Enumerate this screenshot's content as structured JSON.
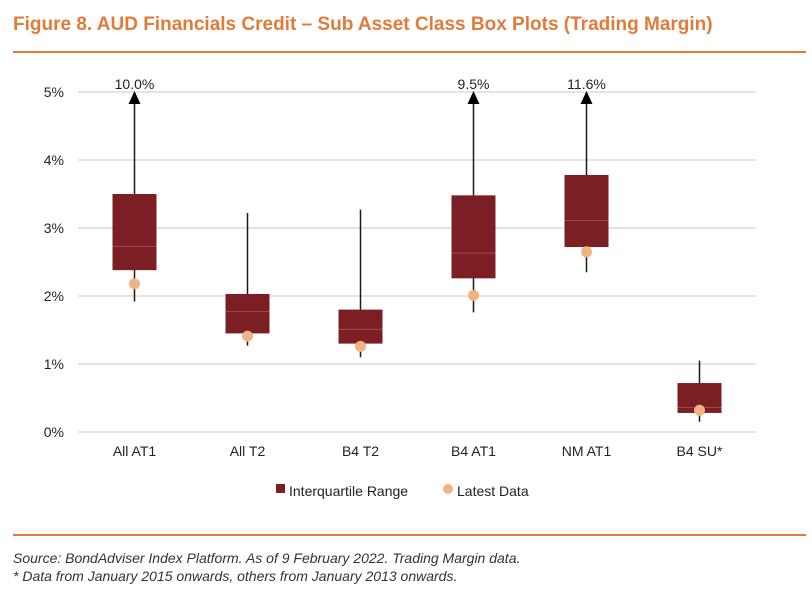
{
  "title": "Figure 8. AUD Financials Credit – Sub Asset Class Box Plots (Trading Margin)",
  "colors": {
    "accent": "#E07B39",
    "box": "#7B1F24",
    "latest": "#F2B383",
    "grid": "#C8C8C8",
    "whisker": "#1a1a1a"
  },
  "chart_data": {
    "type": "boxplot",
    "title": "Figure 8. AUD Financials Credit – Sub Asset Class Box Plots (Trading Margin)",
    "xlabel": "",
    "ylabel": "",
    "ylim": [
      0,
      5
    ],
    "y_ticks": [
      0,
      1,
      2,
      3,
      4,
      5
    ],
    "y_tick_labels": [
      "0%",
      "1%",
      "2%",
      "3%",
      "4%",
      "5%"
    ],
    "grid": true,
    "categories": [
      "All AT1",
      "All T2",
      "B4 T2",
      "B4 AT1",
      "NM AT1",
      "B4 SU*"
    ],
    "series": [
      {
        "name": "All AT1",
        "whisker_low": 1.92,
        "q1": 2.38,
        "median": 2.73,
        "q3": 3.5,
        "whisker_high": 5.0,
        "max_label": "10.0%",
        "latest": 2.18
      },
      {
        "name": "All T2",
        "whisker_low": 1.27,
        "q1": 1.45,
        "median": 1.77,
        "q3": 2.03,
        "whisker_high": 3.22,
        "max_label": null,
        "latest": 1.41
      },
      {
        "name": "B4 T2",
        "whisker_low": 1.1,
        "q1": 1.3,
        "median": 1.51,
        "q3": 1.8,
        "whisker_high": 3.27,
        "max_label": null,
        "latest": 1.26
      },
      {
        "name": "B4 AT1",
        "whisker_low": 1.76,
        "q1": 2.26,
        "median": 2.63,
        "q3": 3.48,
        "whisker_high": 5.0,
        "max_label": "9.5%",
        "latest": 2.01
      },
      {
        "name": "NM AT1",
        "whisker_low": 2.35,
        "q1": 2.72,
        "median": 3.11,
        "q3": 3.78,
        "whisker_high": 5.0,
        "max_label": "11.6%",
        "latest": 2.65
      },
      {
        "name": "B4 SU*",
        "whisker_low": 0.15,
        "q1": 0.28,
        "median": 0.36,
        "q3": 0.72,
        "whisker_high": 1.05,
        "max_label": null,
        "latest": 0.32
      }
    ],
    "legend": [
      "Interquartile Range",
      "Latest Data"
    ],
    "legend_position": "bottom"
  },
  "footer": {
    "source": "Source: BondAdviser Index Platform. As of 9 February 2022. Trading Margin data.",
    "note": "* Data from January 2015 onwards, others from January 2013 onwards."
  }
}
